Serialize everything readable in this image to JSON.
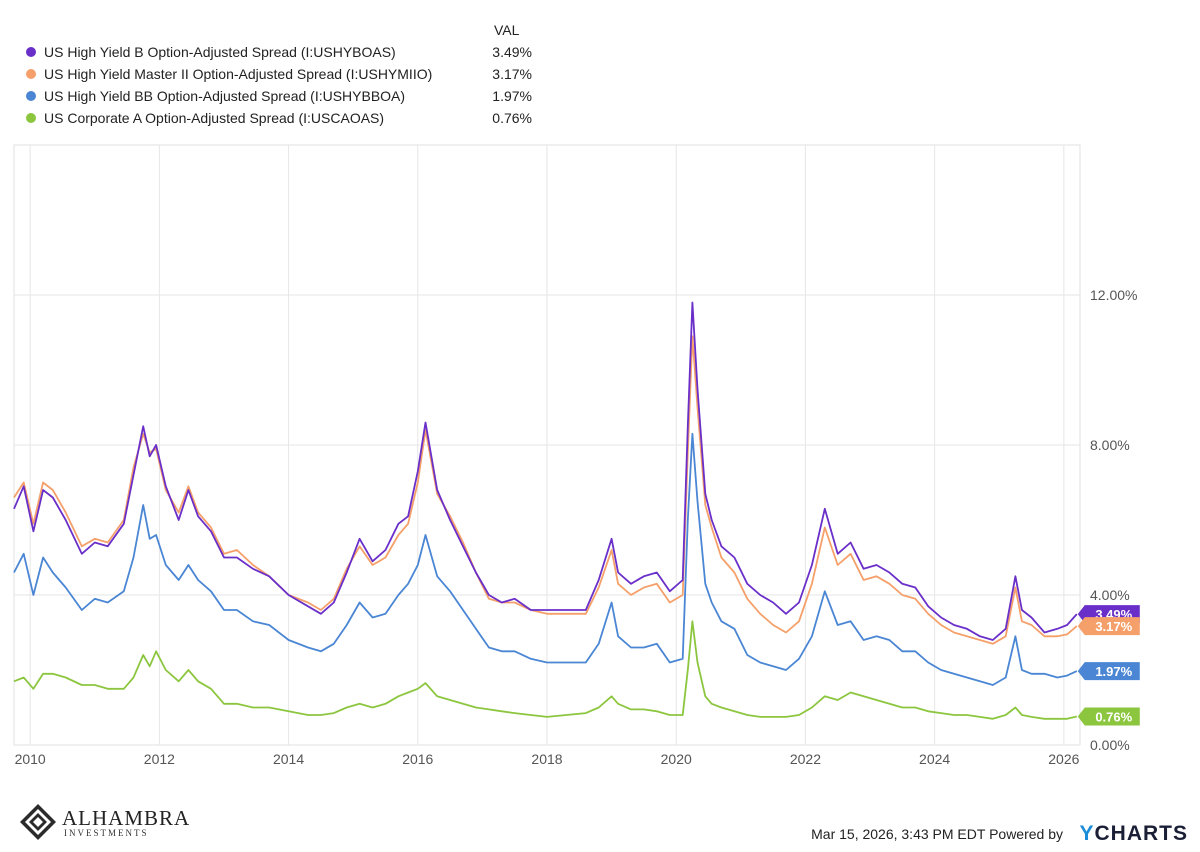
{
  "legend": {
    "header": "VAL",
    "items": [
      {
        "label": "US High Yield B Option-Adjusted Spread (I:USHYBOAS)",
        "value": "3.49%",
        "color": "#6a2fc9"
      },
      {
        "label": "US High Yield Master II Option-Adjusted Spread (I:USHYMIIO)",
        "value": "3.17%",
        "color": "#f5a06a"
      },
      {
        "label": "US High Yield BB Option-Adjusted Spread (I:USHYBBOA)",
        "value": "1.97%",
        "color": "#4a86d4"
      },
      {
        "label": "US Corporate A Option-Adjusted Spread (I:USCAOAS)",
        "value": "0.76%",
        "color": "#8cc63f"
      }
    ]
  },
  "chart_data": {
    "type": "line",
    "title": "",
    "xlabel": "",
    "ylabel": "",
    "xlim": [
      2009.75,
      2026.25
    ],
    "ylim": [
      0,
      16
    ],
    "y_ticks": [
      {
        "value": 0,
        "label": "0.00%"
      },
      {
        "value": 4,
        "label": "4.00%"
      },
      {
        "value": 8,
        "label": "8.00%"
      },
      {
        "value": 12,
        "label": "12.00%"
      }
    ],
    "x_ticks": [
      {
        "value": 2010,
        "label": "2010"
      },
      {
        "value": 2012,
        "label": "2012"
      },
      {
        "value": 2014,
        "label": "2014"
      },
      {
        "value": 2016,
        "label": "2016"
      },
      {
        "value": 2018,
        "label": "2018"
      },
      {
        "value": 2020,
        "label": "2020"
      },
      {
        "value": 2022,
        "label": "2022"
      },
      {
        "value": 2024,
        "label": "2024"
      },
      {
        "value": 2026,
        "label": "2026"
      }
    ],
    "grid": true,
    "series": [
      {
        "name": "US High Yield B Option-Adjusted Spread (I:USHYBOAS)",
        "color": "#6a2fc9",
        "last_label": "3.49%",
        "x": [
          2009.75,
          2009.9,
          2010.05,
          2010.2,
          2010.35,
          2010.55,
          2010.8,
          2011.0,
          2011.2,
          2011.45,
          2011.6,
          2011.75,
          2011.85,
          2011.95,
          2012.1,
          2012.3,
          2012.45,
          2012.6,
          2012.8,
          2013.0,
          2013.2,
          2013.45,
          2013.7,
          2014.0,
          2014.3,
          2014.5,
          2014.7,
          2014.9,
          2015.1,
          2015.3,
          2015.5,
          2015.7,
          2015.85,
          2016.0,
          2016.12,
          2016.3,
          2016.5,
          2016.7,
          2016.9,
          2017.1,
          2017.3,
          2017.5,
          2017.75,
          2018.0,
          2018.3,
          2018.6,
          2018.8,
          2019.0,
          2019.1,
          2019.3,
          2019.5,
          2019.7,
          2019.9,
          2020.1,
          2020.18,
          2020.25,
          2020.33,
          2020.45,
          2020.55,
          2020.7,
          2020.9,
          2021.1,
          2021.3,
          2021.5,
          2021.7,
          2021.9,
          2022.1,
          2022.3,
          2022.5,
          2022.7,
          2022.9,
          2023.1,
          2023.3,
          2023.5,
          2023.7,
          2023.9,
          2024.1,
          2024.3,
          2024.5,
          2024.7,
          2024.9,
          2025.1,
          2025.25,
          2025.35,
          2025.5,
          2025.7,
          2025.9,
          2026.05,
          2026.2
        ],
        "y": [
          6.3,
          6.9,
          5.7,
          6.8,
          6.6,
          6.0,
          5.1,
          5.4,
          5.3,
          5.9,
          7.2,
          8.5,
          7.7,
          8.0,
          6.9,
          6.0,
          6.8,
          6.1,
          5.7,
          5.0,
          5.0,
          4.7,
          4.5,
          4.0,
          3.7,
          3.5,
          3.8,
          4.6,
          5.5,
          4.9,
          5.2,
          5.9,
          6.1,
          7.3,
          8.6,
          6.8,
          6.0,
          5.3,
          4.6,
          4.0,
          3.8,
          3.9,
          3.6,
          3.6,
          3.6,
          3.6,
          4.4,
          5.5,
          4.6,
          4.3,
          4.5,
          4.6,
          4.1,
          4.4,
          8.5,
          11.8,
          9.5,
          6.7,
          6.0,
          5.3,
          5.0,
          4.3,
          4.0,
          3.8,
          3.5,
          3.8,
          4.8,
          6.3,
          5.1,
          5.4,
          4.7,
          4.8,
          4.6,
          4.3,
          4.2,
          3.7,
          3.4,
          3.2,
          3.1,
          2.9,
          2.8,
          3.1,
          4.5,
          3.6,
          3.4,
          3.0,
          3.1,
          3.2,
          3.49
        ]
      },
      {
        "name": "US High Yield Master II Option-Adjusted Spread (I:USHYMIIO)",
        "color": "#f5a06a",
        "last_label": "3.17%",
        "x": [
          2009.75,
          2009.9,
          2010.05,
          2010.2,
          2010.35,
          2010.55,
          2010.8,
          2011.0,
          2011.2,
          2011.45,
          2011.6,
          2011.75,
          2011.85,
          2011.95,
          2012.1,
          2012.3,
          2012.45,
          2012.6,
          2012.8,
          2013.0,
          2013.2,
          2013.45,
          2013.7,
          2014.0,
          2014.3,
          2014.5,
          2014.7,
          2014.9,
          2015.1,
          2015.3,
          2015.5,
          2015.7,
          2015.85,
          2016.0,
          2016.12,
          2016.3,
          2016.5,
          2016.7,
          2016.9,
          2017.1,
          2017.3,
          2017.5,
          2017.75,
          2018.0,
          2018.3,
          2018.6,
          2018.8,
          2019.0,
          2019.1,
          2019.3,
          2019.5,
          2019.7,
          2019.9,
          2020.1,
          2020.18,
          2020.25,
          2020.33,
          2020.45,
          2020.55,
          2020.7,
          2020.9,
          2021.1,
          2021.3,
          2021.5,
          2021.7,
          2021.9,
          2022.1,
          2022.3,
          2022.5,
          2022.7,
          2022.9,
          2023.1,
          2023.3,
          2023.5,
          2023.7,
          2023.9,
          2024.1,
          2024.3,
          2024.5,
          2024.7,
          2024.9,
          2025.1,
          2025.25,
          2025.35,
          2025.5,
          2025.7,
          2025.9,
          2026.05,
          2026.2
        ],
        "y": [
          6.6,
          7.0,
          5.9,
          7.0,
          6.8,
          6.2,
          5.3,
          5.5,
          5.4,
          6.0,
          7.4,
          8.3,
          7.8,
          7.9,
          6.8,
          6.2,
          6.9,
          6.2,
          5.8,
          5.1,
          5.2,
          4.8,
          4.5,
          4.0,
          3.8,
          3.6,
          3.9,
          4.7,
          5.3,
          4.8,
          5.0,
          5.6,
          5.9,
          7.0,
          8.4,
          6.7,
          6.1,
          5.4,
          4.6,
          3.9,
          3.8,
          3.8,
          3.6,
          3.5,
          3.5,
          3.5,
          4.2,
          5.2,
          4.3,
          4.0,
          4.2,
          4.3,
          3.8,
          4.0,
          7.8,
          10.9,
          9.0,
          6.4,
          5.8,
          5.0,
          4.6,
          3.9,
          3.5,
          3.2,
          3.0,
          3.3,
          4.3,
          5.8,
          4.8,
          5.1,
          4.4,
          4.5,
          4.3,
          4.0,
          3.9,
          3.5,
          3.2,
          3.0,
          2.9,
          2.8,
          2.7,
          2.9,
          4.2,
          3.3,
          3.2,
          2.9,
          2.9,
          2.95,
          3.17
        ]
      },
      {
        "name": "US High Yield BB Option-Adjusted Spread (I:USHYBBOA)",
        "color": "#4a86d4",
        "last_label": "1.97%",
        "x": [
          2009.75,
          2009.9,
          2010.05,
          2010.2,
          2010.35,
          2010.55,
          2010.8,
          2011.0,
          2011.2,
          2011.45,
          2011.6,
          2011.75,
          2011.85,
          2011.95,
          2012.1,
          2012.3,
          2012.45,
          2012.6,
          2012.8,
          2013.0,
          2013.2,
          2013.45,
          2013.7,
          2014.0,
          2014.3,
          2014.5,
          2014.7,
          2014.9,
          2015.1,
          2015.3,
          2015.5,
          2015.7,
          2015.85,
          2016.0,
          2016.12,
          2016.3,
          2016.5,
          2016.7,
          2016.9,
          2017.1,
          2017.3,
          2017.5,
          2017.75,
          2018.0,
          2018.3,
          2018.6,
          2018.8,
          2019.0,
          2019.1,
          2019.3,
          2019.5,
          2019.7,
          2019.9,
          2020.1,
          2020.18,
          2020.25,
          2020.33,
          2020.45,
          2020.55,
          2020.7,
          2020.9,
          2021.1,
          2021.3,
          2021.5,
          2021.7,
          2021.9,
          2022.1,
          2022.3,
          2022.5,
          2022.7,
          2022.9,
          2023.1,
          2023.3,
          2023.5,
          2023.7,
          2023.9,
          2024.1,
          2024.3,
          2024.5,
          2024.7,
          2024.9,
          2025.1,
          2025.25,
          2025.35,
          2025.5,
          2025.7,
          2025.9,
          2026.05,
          2026.2
        ],
        "y": [
          4.6,
          5.1,
          4.0,
          5.0,
          4.6,
          4.2,
          3.6,
          3.9,
          3.8,
          4.1,
          5.0,
          6.4,
          5.5,
          5.6,
          4.8,
          4.4,
          4.8,
          4.4,
          4.1,
          3.6,
          3.6,
          3.3,
          3.2,
          2.8,
          2.6,
          2.5,
          2.7,
          3.2,
          3.8,
          3.4,
          3.5,
          4.0,
          4.3,
          4.8,
          5.6,
          4.5,
          4.1,
          3.6,
          3.1,
          2.6,
          2.5,
          2.5,
          2.3,
          2.2,
          2.2,
          2.2,
          2.7,
          3.8,
          2.9,
          2.6,
          2.6,
          2.7,
          2.2,
          2.3,
          6.0,
          8.3,
          6.5,
          4.3,
          3.8,
          3.3,
          3.1,
          2.4,
          2.2,
          2.1,
          2.0,
          2.3,
          2.9,
          4.1,
          3.2,
          3.3,
          2.8,
          2.9,
          2.8,
          2.5,
          2.5,
          2.2,
          2.0,
          1.9,
          1.8,
          1.7,
          1.6,
          1.8,
          2.9,
          2.0,
          1.9,
          1.9,
          1.8,
          1.85,
          1.97
        ]
      },
      {
        "name": "US Corporate A Option-Adjusted Spread (I:USCAOAS)",
        "color": "#8cc63f",
        "last_label": "0.76%",
        "x": [
          2009.75,
          2009.9,
          2010.05,
          2010.2,
          2010.35,
          2010.55,
          2010.8,
          2011.0,
          2011.2,
          2011.45,
          2011.6,
          2011.75,
          2011.85,
          2011.95,
          2012.1,
          2012.3,
          2012.45,
          2012.6,
          2012.8,
          2013.0,
          2013.2,
          2013.45,
          2013.7,
          2014.0,
          2014.3,
          2014.5,
          2014.7,
          2014.9,
          2015.1,
          2015.3,
          2015.5,
          2015.7,
          2015.85,
          2016.0,
          2016.12,
          2016.3,
          2016.5,
          2016.7,
          2016.9,
          2017.1,
          2017.3,
          2017.5,
          2017.75,
          2018.0,
          2018.3,
          2018.6,
          2018.8,
          2019.0,
          2019.1,
          2019.3,
          2019.5,
          2019.7,
          2019.9,
          2020.1,
          2020.18,
          2020.25,
          2020.33,
          2020.45,
          2020.55,
          2020.7,
          2020.9,
          2021.1,
          2021.3,
          2021.5,
          2021.7,
          2021.9,
          2022.1,
          2022.3,
          2022.5,
          2022.7,
          2022.9,
          2023.1,
          2023.3,
          2023.5,
          2023.7,
          2023.9,
          2024.1,
          2024.3,
          2024.5,
          2024.7,
          2024.9,
          2025.1,
          2025.25,
          2025.35,
          2025.5,
          2025.7,
          2025.9,
          2026.05,
          2026.2
        ],
        "y": [
          1.7,
          1.8,
          1.5,
          1.9,
          1.9,
          1.8,
          1.6,
          1.6,
          1.5,
          1.5,
          1.8,
          2.4,
          2.1,
          2.5,
          2.0,
          1.7,
          2.0,
          1.7,
          1.5,
          1.1,
          1.1,
          1.0,
          1.0,
          0.9,
          0.8,
          0.8,
          0.85,
          1.0,
          1.1,
          1.0,
          1.1,
          1.3,
          1.4,
          1.5,
          1.65,
          1.3,
          1.2,
          1.1,
          1.0,
          0.95,
          0.9,
          0.85,
          0.8,
          0.75,
          0.8,
          0.85,
          1.0,
          1.3,
          1.1,
          0.95,
          0.95,
          0.9,
          0.8,
          0.8,
          2.0,
          3.3,
          2.2,
          1.3,
          1.1,
          1.0,
          0.9,
          0.8,
          0.75,
          0.75,
          0.75,
          0.8,
          1.0,
          1.3,
          1.2,
          1.4,
          1.3,
          1.2,
          1.1,
          1.0,
          1.0,
          0.9,
          0.85,
          0.8,
          0.8,
          0.75,
          0.7,
          0.8,
          1.0,
          0.8,
          0.75,
          0.7,
          0.7,
          0.7,
          0.76
        ]
      }
    ]
  },
  "branding": {
    "logo_name": "ALHAMBRA",
    "logo_sub": "INVESTMENTS",
    "timestamp": "Mar 15, 2026, 3:43 PM EDT Powered by",
    "provider_prefix": "Y",
    "provider_rest": "CHARTS"
  }
}
